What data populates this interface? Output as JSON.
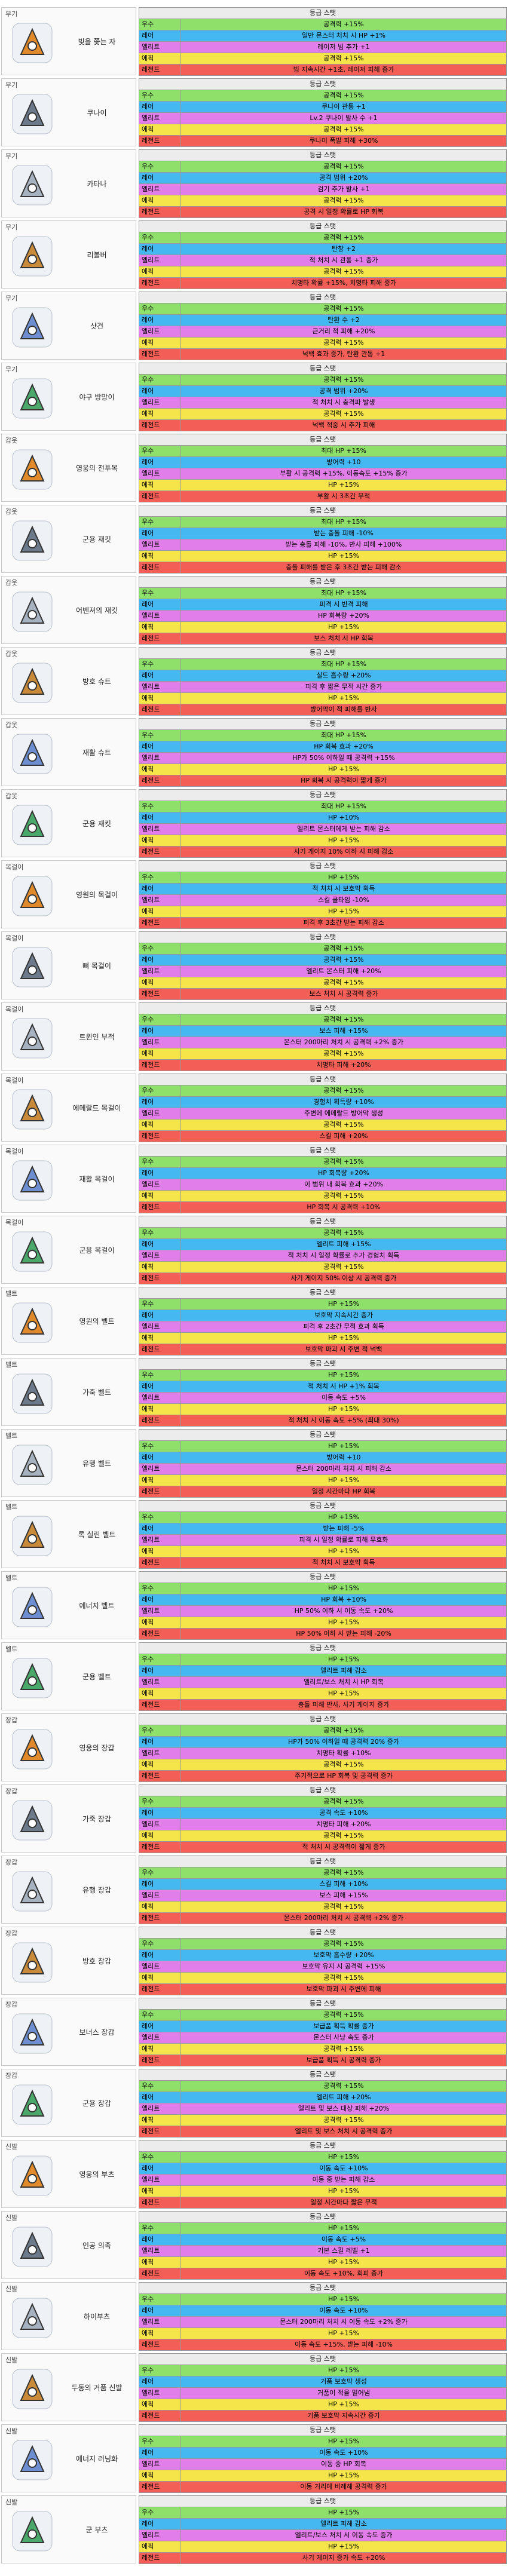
{
  "items": [
    {
      "category": "무기",
      "name": "빛을 쫓는 자",
      "header": "등급 스탯",
      "rows": [
        [
          "우수",
          "공격력 +15%"
        ],
        [
          "레어",
          "일반 몬스터 처치 시 HP +1%"
        ],
        [
          "엘리트",
          "레이저 빔 추가 +1"
        ],
        [
          "에픽",
          "공격력 +15%"
        ],
        [
          "레전드",
          "빔 지속시간 +1초, 레이저 피해 증가"
        ]
      ]
    },
    {
      "category": "무기",
      "name": "쿠나이",
      "header": "등급 스탯",
      "rows": [
        [
          "우수",
          "공격력 +15%"
        ],
        [
          "레어",
          "쿠나이 관통 +1"
        ],
        [
          "엘리트",
          "Lv.2 쿠나이 발사 수 +1"
        ],
        [
          "에픽",
          "공격력 +15%"
        ],
        [
          "레전드",
          "쿠나이 폭발 피해 +30%"
        ]
      ]
    },
    {
      "category": "무기",
      "name": "카타나",
      "header": "등급 스탯",
      "rows": [
        [
          "우수",
          "공격력 +15%"
        ],
        [
          "레어",
          "공격 범위 +20%"
        ],
        [
          "엘리트",
          "검기 추가 발사 +1"
        ],
        [
          "에픽",
          "공격력 +15%"
        ],
        [
          "레전드",
          "공격 시 일정 확률로 HP 회복"
        ]
      ]
    },
    {
      "category": "무기",
      "name": "리볼버",
      "header": "등급 스탯",
      "rows": [
        [
          "우수",
          "공격력 +15%"
        ],
        [
          "레어",
          "탄창 +2"
        ],
        [
          "엘리트",
          "적 처치 시 관통 +1 증가"
        ],
        [
          "에픽",
          "공격력 +15%"
        ],
        [
          "레전드",
          "치명타 확률 +15%, 치명타 피해 증가"
        ]
      ]
    },
    {
      "category": "무기",
      "name": "샷건",
      "header": "등급 스탯",
      "rows": [
        [
          "우수",
          "공격력 +15%"
        ],
        [
          "레어",
          "탄환 수 +2"
        ],
        [
          "엘리트",
          "근거리 적 피해 +20%"
        ],
        [
          "에픽",
          "공격력 +15%"
        ],
        [
          "레전드",
          "넉백 효과 증가, 탄환 관통 +1"
        ]
      ]
    },
    {
      "category": "무기",
      "name": "야구 방망이",
      "header": "등급 스탯",
      "rows": [
        [
          "우수",
          "공격력 +15%"
        ],
        [
          "레어",
          "공격 범위 +20%"
        ],
        [
          "엘리트",
          "적 처치 시 충격파 발생"
        ],
        [
          "에픽",
          "공격력 +15%"
        ],
        [
          "레전드",
          "넉백 적중 시 추가 피해"
        ]
      ]
    },
    {
      "category": "갑옷",
      "name": "영웅의 전투복",
      "header": "등급 스탯",
      "rows": [
        [
          "우수",
          "최대 HP +15%"
        ],
        [
          "레어",
          "방어력 +10"
        ],
        [
          "엘리트",
          "부활 시 공격력 +15%, 이동속도 +15% 증가"
        ],
        [
          "에픽",
          "HP +15%"
        ],
        [
          "레전드",
          "부활 시 3초간 무적"
        ]
      ]
    },
    {
      "category": "갑옷",
      "name": "군용 재킷",
      "header": "등급 스탯",
      "rows": [
        [
          "우수",
          "최대 HP +15%"
        ],
        [
          "레어",
          "받는 충돌 피해 -10%"
        ],
        [
          "엘리트",
          "받는 충돌 피해 -10%, 반사 피해 +100%"
        ],
        [
          "에픽",
          "HP +15%"
        ],
        [
          "레전드",
          "충돌 피해를 받은 후 3초간 받는 피해 감소"
        ]
      ]
    },
    {
      "category": "갑옷",
      "name": "어벤져의 재킷",
      "header": "등급 스탯",
      "rows": [
        [
          "우수",
          "최대 HP +15%"
        ],
        [
          "레어",
          "피격 시 반격 피해"
        ],
        [
          "엘리트",
          "HP 회복량 +20%"
        ],
        [
          "에픽",
          "HP +15%"
        ],
        [
          "레전드",
          "보스 처치 시 HP 회복"
        ]
      ]
    },
    {
      "category": "갑옷",
      "name": "방호 슈트",
      "header": "등급 스탯",
      "rows": [
        [
          "우수",
          "최대 HP +15%"
        ],
        [
          "레어",
          "실드 흡수량 +20%"
        ],
        [
          "엘리트",
          "피격 후 짧은 무적 시간 증가"
        ],
        [
          "에픽",
          "HP +15%"
        ],
        [
          "레전드",
          "방어막이 적 피해를 반사"
        ]
      ]
    },
    {
      "category": "갑옷",
      "name": "재활 슈트",
      "header": "등급 스탯",
      "rows": [
        [
          "우수",
          "최대 HP +15%"
        ],
        [
          "레어",
          "HP 회복 효과 +20%"
        ],
        [
          "엘리트",
          "HP가 50% 이하일 때 공격력 +15%"
        ],
        [
          "에픽",
          "HP +15%"
        ],
        [
          "레전드",
          "HP 회복 시 공격력이 짧게 증가"
        ]
      ]
    },
    {
      "category": "갑옷",
      "name": "군용 재킷",
      "header": "등급 스탯",
      "rows": [
        [
          "우수",
          "최대 HP +15%"
        ],
        [
          "레어",
          "HP +10%"
        ],
        [
          "엘리트",
          "엘리트 몬스터에게 받는 피해 감소"
        ],
        [
          "에픽",
          "HP +15%"
        ],
        [
          "레전드",
          "사기 게이지 10% 이하 시 피해 감소"
        ]
      ]
    },
    {
      "category": "목걸이",
      "name": "영원의 목걸이",
      "header": "등급 스탯",
      "rows": [
        [
          "우수",
          "HP +15%"
        ],
        [
          "레어",
          "적 처치 시 보호막 획득"
        ],
        [
          "엘리트",
          "스킬 쿨타임 -10%"
        ],
        [
          "에픽",
          "HP +15%"
        ],
        [
          "레전드",
          "피격 후 3초간 받는 피해 감소"
        ]
      ]
    },
    {
      "category": "목걸이",
      "name": "뼈 목걸이",
      "header": "등급 스탯",
      "rows": [
        [
          "우수",
          "공격력 +15%"
        ],
        [
          "레어",
          "공격력 +15%"
        ],
        [
          "엘리트",
          "엘리트 몬스터 피해 +20%"
        ],
        [
          "에픽",
          "공격력 +15%"
        ],
        [
          "레전드",
          "보스 처치 시 공격력 증가"
        ]
      ]
    },
    {
      "category": "목걸이",
      "name": "트윈인 부적",
      "header": "등급 스탯",
      "rows": [
        [
          "우수",
          "공격력 +15%"
        ],
        [
          "레어",
          "보스 피해 +15%"
        ],
        [
          "엘리트",
          "몬스터 200마리 처치 시 공격력 +2% 증가"
        ],
        [
          "에픽",
          "공격력 +15%"
        ],
        [
          "레전드",
          "치명타 피해 +20%"
        ]
      ]
    },
    {
      "category": "목걸이",
      "name": "에메랄드 목걸이",
      "header": "등급 스탯",
      "rows": [
        [
          "우수",
          "공격력 +15%"
        ],
        [
          "레어",
          "경험치 획득량 +10%"
        ],
        [
          "엘리트",
          "주변에 에메랄드 방어막 생성"
        ],
        [
          "에픽",
          "공격력 +15%"
        ],
        [
          "레전드",
          "스킬 피해 +20%"
        ]
      ]
    },
    {
      "category": "목걸이",
      "name": "재활 목걸이",
      "header": "등급 스탯",
      "rows": [
        [
          "우수",
          "공격력 +15%"
        ],
        [
          "레어",
          "HP 회복량 +20%"
        ],
        [
          "엘리트",
          "이 범위 내 회복 효과 +20%"
        ],
        [
          "에픽",
          "공격력 +15%"
        ],
        [
          "레전드",
          "HP 회복 시 공격력 +10%"
        ]
      ]
    },
    {
      "category": "목걸이",
      "name": "군용 목걸이",
      "header": "등급 스탯",
      "rows": [
        [
          "우수",
          "공격력 +15%"
        ],
        [
          "레어",
          "엘리트 피해 +15%"
        ],
        [
          "엘리트",
          "적 처치 시 일정 확률로 추가 경험치 획득"
        ],
        [
          "에픽",
          "공격력 +15%"
        ],
        [
          "레전드",
          "사기 게이지 50% 이상 시 공격력 증가"
        ]
      ]
    },
    {
      "category": "벨트",
      "name": "영원의 벨트",
      "header": "등급 스탯",
      "rows": [
        [
          "우수",
          "HP +15%"
        ],
        [
          "레어",
          "보호막 지속시간 증가"
        ],
        [
          "엘리트",
          "피격 후 2초간 무적 효과 획득"
        ],
        [
          "에픽",
          "HP +15%"
        ],
        [
          "레전드",
          "보호막 파괴 시 주변 적 넉백"
        ]
      ]
    },
    {
      "category": "벨트",
      "name": "가죽 벨트",
      "header": "등급 스탯",
      "rows": [
        [
          "우수",
          "HP +15%"
        ],
        [
          "레어",
          "적 처치 시 HP +1% 회복"
        ],
        [
          "엘리트",
          "이동 속도 +5%"
        ],
        [
          "에픽",
          "HP +15%"
        ],
        [
          "레전드",
          "적 처치 시 이동 속도 +5% (최대 30%)"
        ]
      ]
    },
    {
      "category": "벨트",
      "name": "유행 벨트",
      "header": "등급 스탯",
      "rows": [
        [
          "우수",
          "HP +15%"
        ],
        [
          "레어",
          "방어력 +10"
        ],
        [
          "엘리트",
          "몬스터 200마리 처치 시 피해 감소"
        ],
        [
          "에픽",
          "HP +15%"
        ],
        [
          "레전드",
          "일정 시간마다 HP 회복"
        ]
      ]
    },
    {
      "category": "벨트",
      "name": "록 실린 벨트",
      "header": "등급 스탯",
      "rows": [
        [
          "우수",
          "HP +15%"
        ],
        [
          "레어",
          "받는 피해 -5%"
        ],
        [
          "엘리트",
          "피격 시 일정 확률로 피해 무효화"
        ],
        [
          "에픽",
          "HP +15%"
        ],
        [
          "레전드",
          "적 처치 시 보호막 획득"
        ]
      ]
    },
    {
      "category": "벨트",
      "name": "에너지 벨트",
      "header": "등급 스탯",
      "rows": [
        [
          "우수",
          "HP +15%"
        ],
        [
          "레어",
          "HP 회복 +10%"
        ],
        [
          "엘리트",
          "HP 50% 이하 시 이동 속도 +20%"
        ],
        [
          "에픽",
          "HP +15%"
        ],
        [
          "레전드",
          "HP 50% 이하 시 받는 피해 -20%"
        ]
      ]
    },
    {
      "category": "벨트",
      "name": "군용 벨트",
      "header": "등급 스탯",
      "rows": [
        [
          "우수",
          "HP +15%"
        ],
        [
          "레어",
          "엘리트 피해 감소"
        ],
        [
          "엘리트",
          "엘리트/보스 처치 시 HP 회복"
        ],
        [
          "에픽",
          "HP +15%"
        ],
        [
          "레전드",
          "충돌 피해 반사, 사기 게이지 증가"
        ]
      ]
    },
    {
      "category": "장갑",
      "name": "영웅의 장갑",
      "header": "등급 스탯",
      "rows": [
        [
          "우수",
          "공격력 +15%"
        ],
        [
          "레어",
          "HP가 50% 이하일 때 공격력 20% 증가"
        ],
        [
          "엘리트",
          "치명타 확률 +10%"
        ],
        [
          "에픽",
          "공격력 +15%"
        ],
        [
          "레전드",
          "주기적으로 HP 회복 및 공격력 증가"
        ]
      ]
    },
    {
      "category": "장갑",
      "name": "가죽 장갑",
      "header": "등급 스탯",
      "rows": [
        [
          "우수",
          "공격력 +15%"
        ],
        [
          "레어",
          "공격 속도 +10%"
        ],
        [
          "엘리트",
          "치명타 피해 +20%"
        ],
        [
          "에픽",
          "공격력 +15%"
        ],
        [
          "레전드",
          "적 처치 시 공격력이 짧게 증가"
        ]
      ]
    },
    {
      "category": "장갑",
      "name": "유행 장갑",
      "header": "등급 스탯",
      "rows": [
        [
          "우수",
          "공격력 +15%"
        ],
        [
          "레어",
          "스킬 피해 +10%"
        ],
        [
          "엘리트",
          "보스 피해 +15%"
        ],
        [
          "에픽",
          "공격력 +15%"
        ],
        [
          "레전드",
          "몬스터 200마리 처치 시 공격력 +2% 증가"
        ]
      ]
    },
    {
      "category": "장갑",
      "name": "방호 장갑",
      "header": "등급 스탯",
      "rows": [
        [
          "우수",
          "공격력 +15%"
        ],
        [
          "레어",
          "보호막 흡수량 +20%"
        ],
        [
          "엘리트",
          "보호막 유지 시 공격력 +15%"
        ],
        [
          "에픽",
          "공격력 +15%"
        ],
        [
          "레전드",
          "보호막 파괴 시 주변에 피해"
        ]
      ]
    },
    {
      "category": "장갑",
      "name": "보너스 장갑",
      "header": "등급 스탯",
      "rows": [
        [
          "우수",
          "공격력 +15%"
        ],
        [
          "레어",
          "보급품 획득 확률 증가"
        ],
        [
          "엘리트",
          "몬스터 사냥 속도 증가"
        ],
        [
          "에픽",
          "공격력 +15%"
        ],
        [
          "레전드",
          "보급품 획득 시 공격력 증가"
        ]
      ]
    },
    {
      "category": "장갑",
      "name": "군용 장갑",
      "header": "등급 스탯",
      "rows": [
        [
          "우수",
          "공격력 +15%"
        ],
        [
          "레어",
          "엘리트 피해 +20%"
        ],
        [
          "엘리트",
          "엘리트 및 보스 대상 피해 +20%"
        ],
        [
          "에픽",
          "공격력 +15%"
        ],
        [
          "레전드",
          "엘리트 및 보스 처치 시 공격력 증가"
        ]
      ]
    },
    {
      "category": "신발",
      "name": "영웅의 부츠",
      "header": "등급 스탯",
      "rows": [
        [
          "우수",
          "HP +15%"
        ],
        [
          "레어",
          "이동 속도 +10%"
        ],
        [
          "엘리트",
          "이동 중 받는 피해 감소"
        ],
        [
          "에픽",
          "HP +15%"
        ],
        [
          "레전드",
          "일정 시간마다 짧은 무적"
        ]
      ]
    },
    {
      "category": "신발",
      "name": "인공 의족",
      "header": "등급 스탯",
      "rows": [
        [
          "우수",
          "HP +15%"
        ],
        [
          "레어",
          "이동 속도 +5%"
        ],
        [
          "엘리트",
          "기본 스킬 레벨 +1"
        ],
        [
          "에픽",
          "HP +15%"
        ],
        [
          "레전드",
          "이동 속도 +10%, 회피 증가"
        ]
      ]
    },
    {
      "category": "신발",
      "name": "하이부츠",
      "header": "등급 스탯",
      "rows": [
        [
          "우수",
          "HP +15%"
        ],
        [
          "레어",
          "이동 속도 +10%"
        ],
        [
          "엘리트",
          "몬스터 200마리 처치 시 이동 속도 +2% 증가"
        ],
        [
          "에픽",
          "HP +15%"
        ],
        [
          "레전드",
          "이동 속도 +15%, 받는 피해 -10%"
        ]
      ]
    },
    {
      "category": "신발",
      "name": "두동의 거품 신발",
      "header": "등급 스탯",
      "rows": [
        [
          "우수",
          "HP +15%"
        ],
        [
          "레어",
          "거품 보호막 생성"
        ],
        [
          "엘리트",
          "거품이 적을 밀어냄"
        ],
        [
          "에픽",
          "HP +15%"
        ],
        [
          "레전드",
          "거품 보호막 지속시간 증가"
        ]
      ]
    },
    {
      "category": "신발",
      "name": "에너지 러닝화",
      "header": "등급 스탯",
      "rows": [
        [
          "우수",
          "HP +15%"
        ],
        [
          "레어",
          "이동 속도 +10%"
        ],
        [
          "엘리트",
          "이동 중 HP 회복"
        ],
        [
          "에픽",
          "HP +15%"
        ],
        [
          "레전드",
          "이동 거리에 비례해 공격력 증가"
        ]
      ]
    },
    {
      "category": "신발",
      "name": "군 부츠",
      "header": "등급 스탯",
      "rows": [
        [
          "우수",
          "HP +15%"
        ],
        [
          "레어",
          "엘리트 피해 감소"
        ],
        [
          "엘리트",
          "엘리트/보스 처치 시 이동 속도 증가"
        ],
        [
          "에픽",
          "HP +15%"
        ],
        [
          "레전드",
          "사기 게이지 증가 속도 +20%"
        ]
      ]
    }
  ]
}
